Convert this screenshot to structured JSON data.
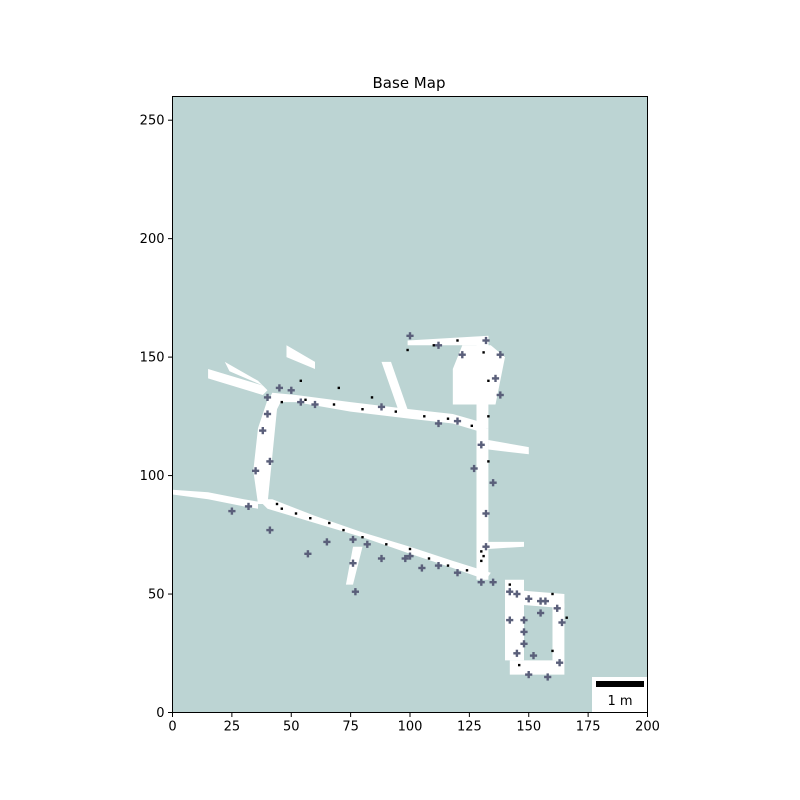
{
  "figure": {
    "title": "Base Map"
  },
  "colors": {
    "unknown": "#bcd4d3",
    "free": "#ffffff",
    "obstacle_dark": "#000000",
    "obstacle_marker": "#5a5f7a",
    "axes": "#000000"
  },
  "chart_data": {
    "type": "heatmap",
    "title": "Base Map",
    "xlim": [
      0,
      200
    ],
    "ylim": [
      0,
      260
    ],
    "x_ticks": [
      0,
      25,
      50,
      75,
      100,
      125,
      150,
      175,
      200
    ],
    "y_ticks": [
      0,
      50,
      100,
      150,
      200,
      250
    ],
    "grid": false,
    "legend": "none",
    "scale_bar": {
      "label": "1 m",
      "placement": "bottom-right"
    },
    "free_space_polygons": [
      [
        [
          36,
          88
        ],
        [
          40,
          88
        ],
        [
          44,
          128
        ],
        [
          46,
          132
        ],
        [
          40,
          132
        ],
        [
          36,
          120
        ],
        [
          34,
          102
        ]
      ],
      [
        [
          40,
          131
        ],
        [
          52,
          131
        ],
        [
          75,
          127
        ],
        [
          100,
          124
        ],
        [
          118,
          122
        ],
        [
          128,
          119
        ],
        [
          132,
          118
        ],
        [
          132,
          122
        ],
        [
          118,
          126
        ],
        [
          100,
          128
        ],
        [
          75,
          131
        ],
        [
          52,
          134
        ],
        [
          42,
          135
        ]
      ],
      [
        [
          36,
          90
        ],
        [
          40,
          86
        ],
        [
          60,
          80
        ],
        [
          80,
          74
        ],
        [
          100,
          67
        ],
        [
          118,
          61
        ],
        [
          132,
          56
        ],
        [
          134,
          59
        ],
        [
          118,
          64
        ],
        [
          100,
          70
        ],
        [
          80,
          76
        ],
        [
          60,
          83
        ],
        [
          42,
          90
        ]
      ],
      [
        [
          128,
          56
        ],
        [
          133,
          56
        ],
        [
          133,
          120
        ],
        [
          128,
          120
        ]
      ],
      [
        [
          128,
          120
        ],
        [
          133,
          120
        ],
        [
          133,
          157
        ],
        [
          128,
          157
        ]
      ],
      [
        [
          99,
          155
        ],
        [
          133,
          155
        ],
        [
          133,
          159
        ],
        [
          99,
          157
        ]
      ],
      [
        [
          118,
          130
        ],
        [
          136,
          130
        ],
        [
          140,
          150
        ],
        [
          134,
          155
        ],
        [
          122,
          155
        ],
        [
          118,
          145
        ]
      ],
      [
        [
          140,
          56
        ],
        [
          148,
          56
        ],
        [
          148,
          22
        ],
        [
          140,
          22
        ]
      ],
      [
        [
          140,
          52
        ],
        [
          165,
          50
        ],
        [
          165,
          44
        ],
        [
          140,
          46
        ]
      ],
      [
        [
          160,
          46
        ],
        [
          165,
          46
        ],
        [
          165,
          22
        ],
        [
          160,
          22
        ]
      ],
      [
        [
          142,
          22
        ],
        [
          165,
          22
        ],
        [
          165,
          16
        ],
        [
          142,
          16
        ]
      ],
      [
        [
          0,
          94
        ],
        [
          15,
          93
        ],
        [
          30,
          90
        ],
        [
          36,
          89
        ],
        [
          36,
          86
        ],
        [
          30,
          87
        ],
        [
          15,
          90
        ],
        [
          0,
          92
        ]
      ],
      [
        [
          15,
          145
        ],
        [
          38,
          138
        ],
        [
          40,
          136
        ],
        [
          38,
          134
        ],
        [
          15,
          141
        ]
      ],
      [
        [
          22,
          148
        ],
        [
          36,
          140
        ],
        [
          38,
          138
        ],
        [
          24,
          144
        ]
      ],
      [
        [
          88,
          148
        ],
        [
          92,
          148
        ],
        [
          100,
          125
        ],
        [
          96,
          125
        ]
      ],
      [
        [
          76,
          70
        ],
        [
          80,
          70
        ],
        [
          76,
          54
        ],
        [
          73,
          54
        ]
      ],
      [
        [
          48,
          155
        ],
        [
          60,
          148
        ],
        [
          60,
          145
        ],
        [
          48,
          150
        ]
      ],
      [
        [
          133,
          72
        ],
        [
          148,
          72
        ],
        [
          148,
          70
        ],
        [
          133,
          69
        ]
      ],
      [
        [
          133,
          115
        ],
        [
          150,
          112
        ],
        [
          150,
          109
        ],
        [
          133,
          111
        ]
      ]
    ],
    "obstacle_points": [
      [
        32,
        87
      ],
      [
        25,
        85
      ],
      [
        35,
        102
      ],
      [
        38,
        119
      ],
      [
        40,
        126
      ],
      [
        41,
        106
      ],
      [
        45,
        137
      ],
      [
        50,
        136
      ],
      [
        54,
        131
      ],
      [
        60,
        130
      ],
      [
        40,
        133
      ],
      [
        76,
        73
      ],
      [
        82,
        71
      ],
      [
        88,
        65
      ],
      [
        100,
        66
      ],
      [
        112,
        62
      ],
      [
        120,
        59
      ],
      [
        130,
        55
      ],
      [
        135,
        55
      ],
      [
        132,
        84
      ],
      [
        120,
        123
      ],
      [
        112,
        122
      ],
      [
        88,
        129
      ],
      [
        100,
        159
      ],
      [
        112,
        155
      ],
      [
        122,
        151
      ],
      [
        132,
        157
      ],
      [
        138,
        151
      ],
      [
        136,
        141
      ],
      [
        138,
        134
      ],
      [
        130,
        113
      ],
      [
        135,
        97
      ],
      [
        127,
        103
      ],
      [
        145,
        50
      ],
      [
        150,
        48
      ],
      [
        155,
        47
      ],
      [
        162,
        44
      ],
      [
        164,
        38
      ],
      [
        155,
        42
      ],
      [
        152,
        24
      ],
      [
        148,
        29
      ],
      [
        163,
        21
      ],
      [
        158,
        15
      ],
      [
        150,
        16
      ],
      [
        145,
        25
      ],
      [
        142,
        39
      ],
      [
        148,
        39
      ],
      [
        77,
        51
      ],
      [
        65,
        72
      ],
      [
        57,
        67
      ],
      [
        105,
        61
      ],
      [
        98,
        65
      ],
      [
        76,
        63
      ],
      [
        41,
        77
      ],
      [
        142,
        51
      ],
      [
        157,
        47
      ],
      [
        132,
        70
      ],
      [
        148,
        34
      ]
    ],
    "obstacle_cells": [
      [
        130,
        64
      ],
      [
        131,
        66
      ],
      [
        130,
        68
      ],
      [
        44,
        88
      ],
      [
        46,
        86
      ],
      [
        52,
        84
      ],
      [
        58,
        82
      ],
      [
        66,
        80
      ],
      [
        72,
        77
      ],
      [
        80,
        74
      ],
      [
        90,
        71
      ],
      [
        100,
        69
      ],
      [
        108,
        65
      ],
      [
        116,
        62
      ],
      [
        124,
        60
      ],
      [
        46,
        131
      ],
      [
        56,
        132
      ],
      [
        68,
        130
      ],
      [
        80,
        128
      ],
      [
        94,
        127
      ],
      [
        106,
        125
      ],
      [
        116,
        124
      ],
      [
        126,
        121
      ],
      [
        133,
        125
      ],
      [
        133,
        140
      ],
      [
        99,
        153
      ],
      [
        110,
        155
      ],
      [
        120,
        157
      ],
      [
        131,
        152
      ],
      [
        133,
        106
      ],
      [
        142,
        54
      ],
      [
        160,
        50
      ],
      [
        166,
        40
      ],
      [
        160,
        26
      ],
      [
        146,
        20
      ],
      [
        54,
        140
      ],
      [
        70,
        137
      ],
      [
        84,
        133
      ]
    ]
  }
}
